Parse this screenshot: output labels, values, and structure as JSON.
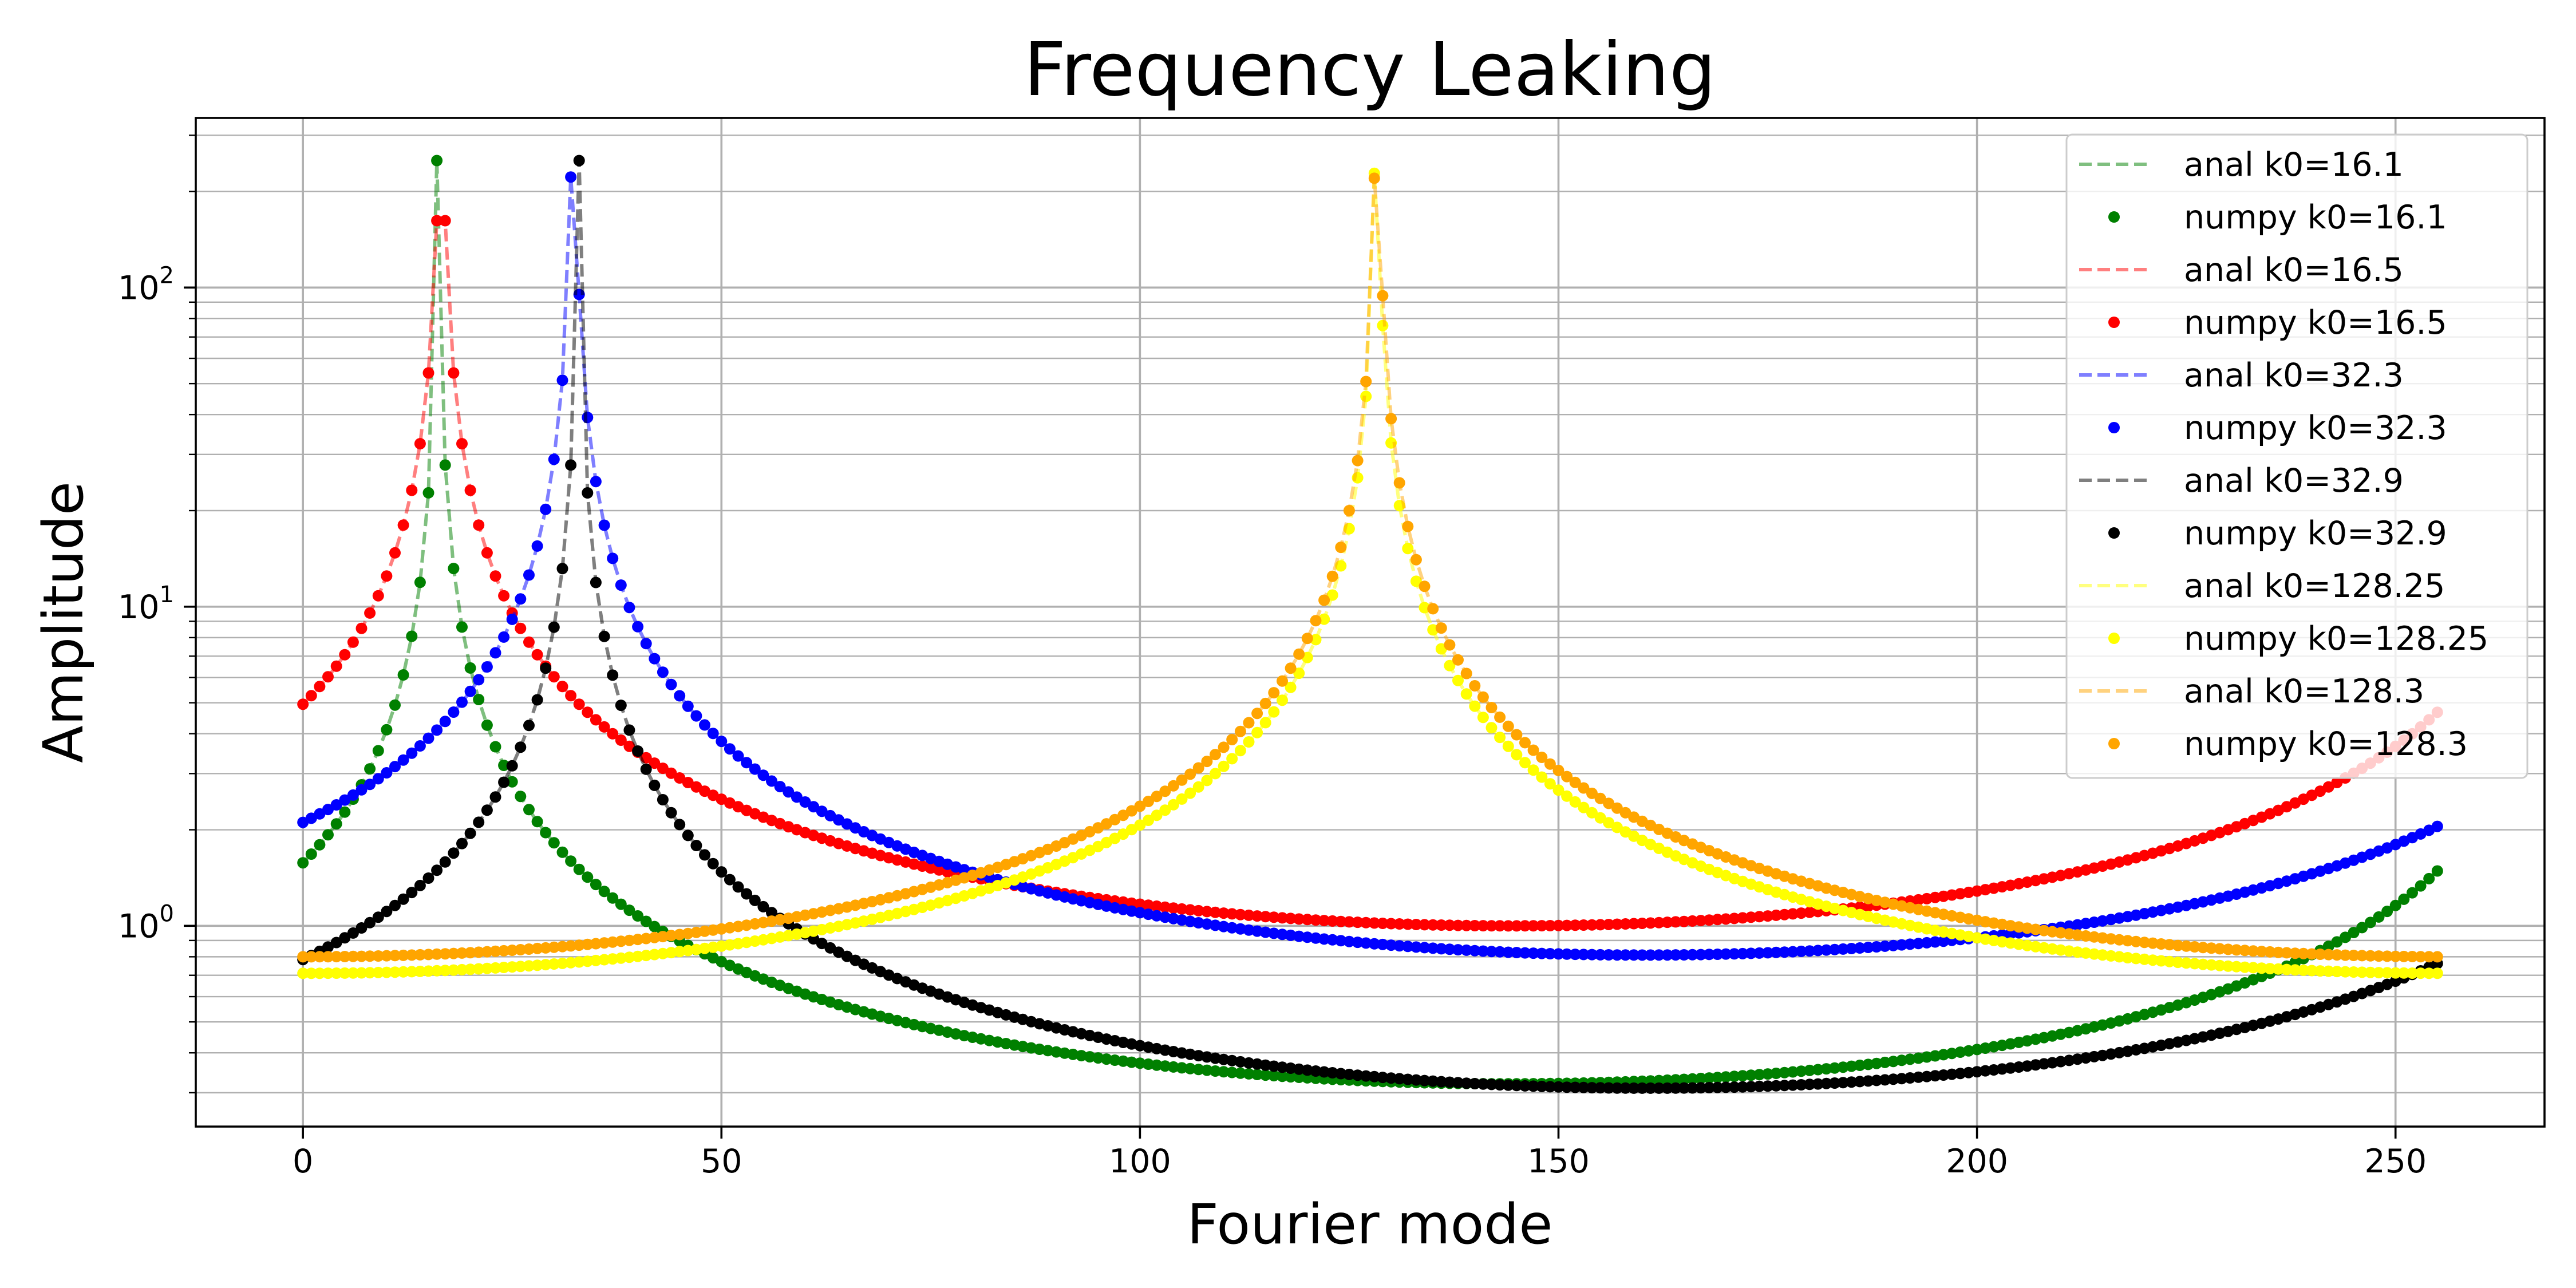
{
  "chart_data": {
    "type": "line",
    "title": "Frequency Leaking",
    "xlabel": "Fourier mode",
    "ylabel": "Amplitude",
    "xlim": [
      -12.8,
      267.8
    ],
    "ylim": [
      0.235,
      340
    ],
    "yscale": "log",
    "grid": "major and minor (y)",
    "legend_position": "top-right",
    "x_tick_labels": [
      "0",
      "50",
      "100",
      "150",
      "200",
      "250"
    ],
    "x_tick_values": [
      0,
      50,
      100,
      150,
      200,
      250
    ],
    "y_tick_base": "10",
    "y_tick_exponents": [
      "0",
      "1",
      "2"
    ],
    "y_tick_values": [
      1,
      10,
      100
    ],
    "x": {
      "start": 0,
      "stop": 255,
      "step": 1
    },
    "series": [
      {
        "name": "anal k0=16.1",
        "style": "dashed-line",
        "color": "#008000",
        "k0": 16.1,
        "peak": 250,
        "ends": [
          1.6,
          1.5
        ],
        "mid_min": 0.32
      },
      {
        "name": "numpy k0=16.1",
        "style": "markers",
        "color": "#008000",
        "k0": 16.1,
        "peak": 250,
        "ends": [
          1.6,
          1.5
        ],
        "mid_min": 0.32
      },
      {
        "name": "anal k0=16.5",
        "style": "dashed-line",
        "color": "#ff0000",
        "k0": 16.5,
        "peak": 162,
        "ends": [
          5.0,
          4.7
        ],
        "mid_min": 1.0
      },
      {
        "name": "numpy k0=16.5",
        "style": "markers",
        "color": "#ff0000",
        "k0": 16.5,
        "peak": 162,
        "ends": [
          5.0,
          4.7
        ],
        "mid_min": 1.0
      },
      {
        "name": "anal k0=32.3",
        "style": "dashed-line",
        "color": "#0000ff",
        "k0": 32.3,
        "peak": 222,
        "ends": [
          2.1,
          2.05
        ],
        "mid_min": 0.81
      },
      {
        "name": "numpy k0=32.3",
        "style": "markers",
        "color": "#0000ff",
        "k0": 32.3,
        "peak": 222,
        "ends": [
          2.1,
          2.05
        ],
        "mid_min": 0.81
      },
      {
        "name": "anal k0=32.9",
        "style": "dashed-line",
        "color": "#000000",
        "k0": 32.9,
        "peak": 250,
        "ends": [
          0.8,
          0.76
        ],
        "mid_min": 0.31
      },
      {
        "name": "numpy k0=32.9",
        "style": "markers",
        "color": "#000000",
        "k0": 32.9,
        "peak": 250,
        "ends": [
          0.8,
          0.76
        ],
        "mid_min": 0.31
      },
      {
        "name": "anal k0=128.25",
        "style": "dashed-line",
        "color": "#ffff00",
        "k0": 128.25,
        "peak": 228,
        "ends": [
          0.71,
          0.71
        ],
        "mid_min": 0.71
      },
      {
        "name": "numpy k0=128.25",
        "style": "markers",
        "color": "#ffff00",
        "k0": 128.25,
        "peak": 228,
        "ends": [
          0.71,
          0.71
        ],
        "mid_min": 0.71
      },
      {
        "name": "anal k0=128.3",
        "style": "dashed-line",
        "color": "#ffa500",
        "k0": 128.3,
        "peak": 220,
        "ends": [
          0.8,
          0.8
        ],
        "mid_min": 0.8
      },
      {
        "name": "numpy k0=128.3",
        "style": "markers",
        "color": "#ffa500",
        "k0": 128.3,
        "peak": 220,
        "ends": [
          0.8,
          0.8
        ],
        "mid_min": 0.8
      }
    ]
  }
}
